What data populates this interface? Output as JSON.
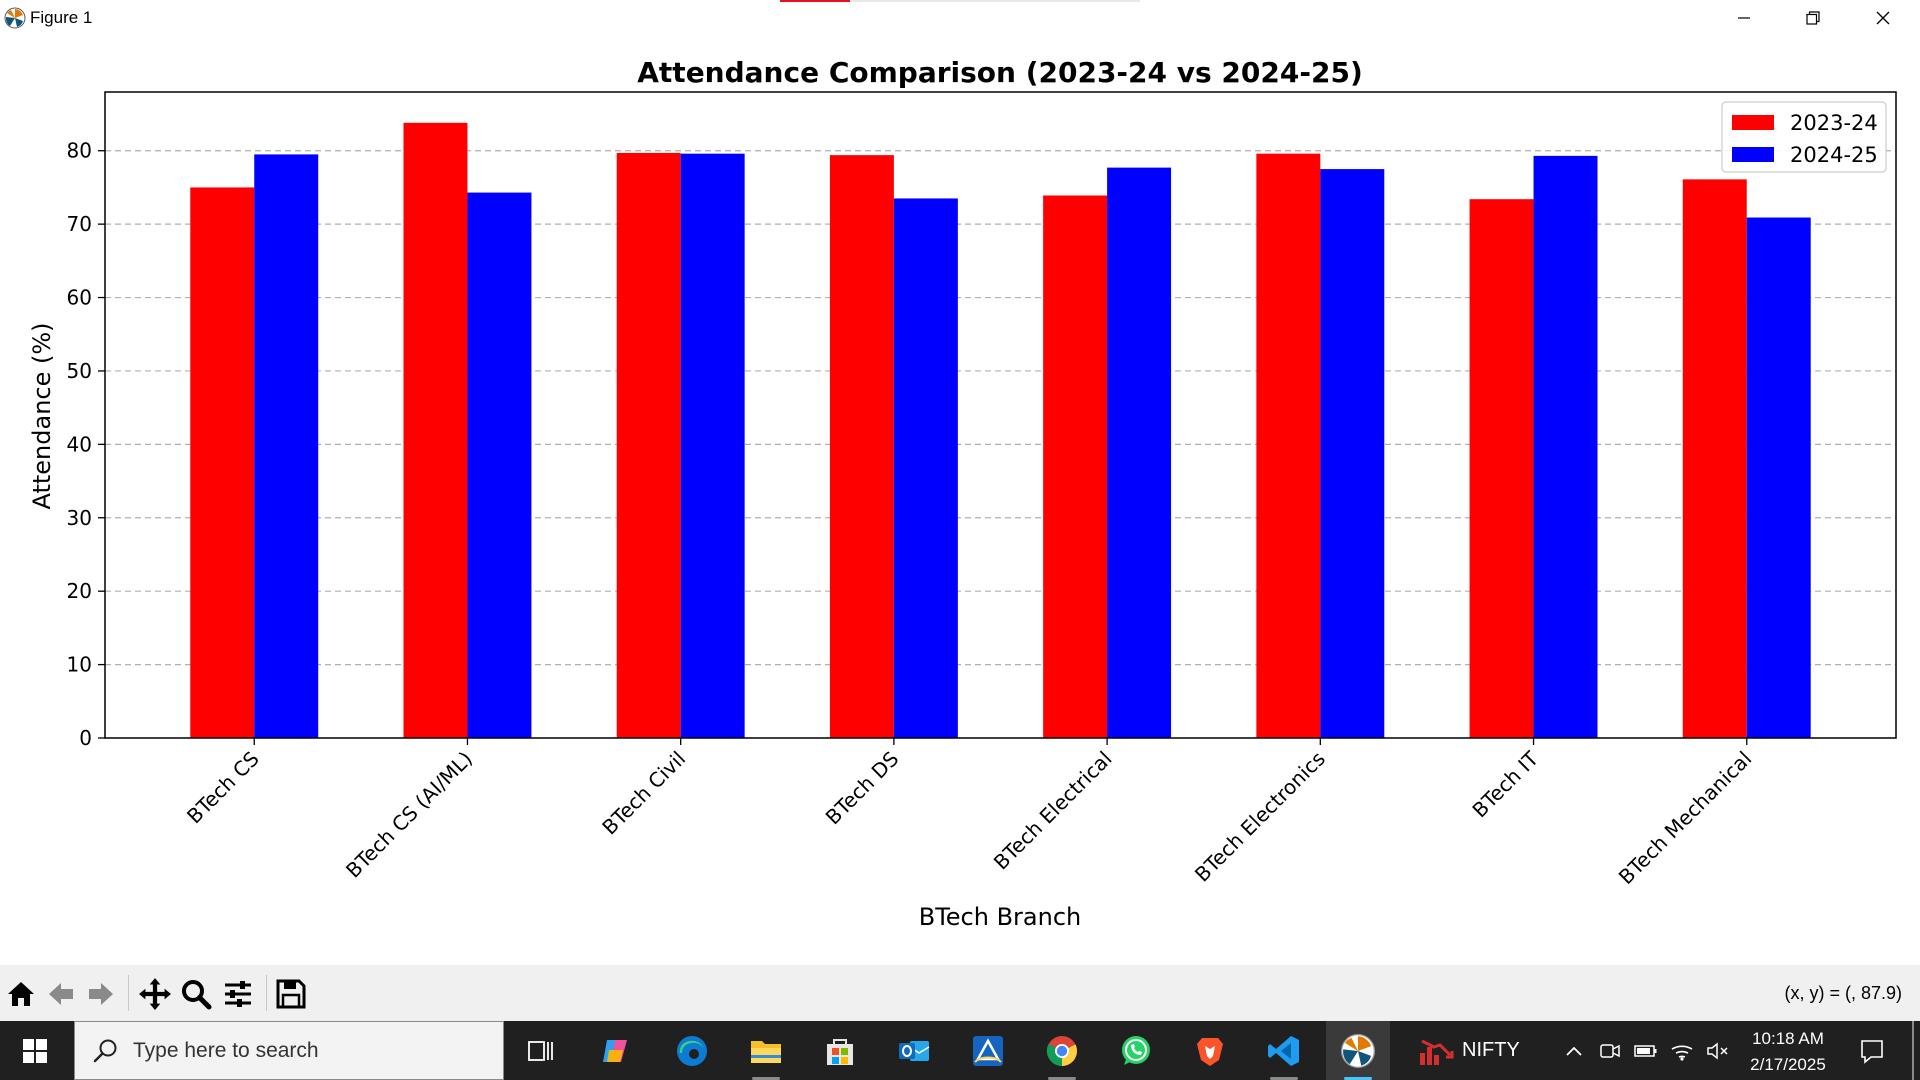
{
  "window": {
    "title": "Figure 1",
    "icon": "matplotlib-icon",
    "controls": [
      "minimize-icon",
      "restore-icon",
      "close-icon"
    ]
  },
  "chart_data": {
    "type": "bar",
    "title": "Attendance Comparison (2023-24 vs 2024-25)",
    "xlabel": "BTech Branch",
    "ylabel": "Attendance (%)",
    "categories": [
      "BTech CS",
      "BTech CS (AI/ML)",
      "BTech Civil",
      "BTech DS",
      "BTech Electrical",
      "BTech Electronics",
      "BTech IT",
      "BTech Mechanical"
    ],
    "series": [
      {
        "name": "2023-24",
        "color": "#ff0000",
        "values": [
          75.0,
          83.8,
          79.7,
          79.4,
          73.9,
          79.6,
          73.4,
          76.1
        ]
      },
      {
        "name": "2024-25",
        "color": "#0000ff",
        "values": [
          79.5,
          74.3,
          79.6,
          73.5,
          77.7,
          77.5,
          79.3,
          70.9
        ]
      }
    ],
    "ylim": [
      0,
      88
    ],
    "yticks": [
      "0",
      "10",
      "20",
      "30",
      "40",
      "50",
      "60",
      "70",
      "80"
    ],
    "grid": "y-dashed",
    "legend": "top-right",
    "xtick_rotation": 45
  },
  "toolbar": {
    "buttons": [
      "home-icon",
      "back-icon",
      "forward-icon",
      "pan-icon",
      "zoom-icon",
      "configure-subplots-icon",
      "save-icon"
    ],
    "coords": "(x, y) = (, 87.9)"
  },
  "taskbar": {
    "search_placeholder": "Type here to search",
    "apps": [
      "task-view-icon",
      "copilot-icon",
      "edge-icon",
      "file-explorer-icon",
      "microsoft-store-icon",
      "outlook-icon",
      "drive-app-icon",
      "chrome-icon",
      "whatsapp-icon",
      "brave-icon",
      "vscode-icon",
      "matplotlib-icon"
    ],
    "stock_label": "NIFTY",
    "time": "10:18 AM",
    "date": "2/17/2025"
  }
}
